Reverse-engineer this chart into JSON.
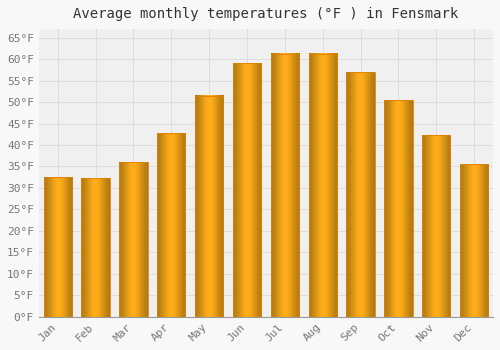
{
  "title": "Average monthly temperatures (°F ) in Fensmark",
  "months": [
    "Jan",
    "Feb",
    "Mar",
    "Apr",
    "May",
    "Jun",
    "Jul",
    "Aug",
    "Sep",
    "Oct",
    "Nov",
    "Dec"
  ],
  "values": [
    32.5,
    32.3,
    36.0,
    42.8,
    51.5,
    59.0,
    61.3,
    61.3,
    57.0,
    50.5,
    42.3,
    35.5
  ],
  "bar_color_main": "#FFA800",
  "bar_color_light": "#FFD060",
  "bar_color_dark": "#E08000",
  "background_color": "#F8F8F8",
  "plot_bg_color": "#F0F0F0",
  "grid_color": "#DDDDDD",
  "ylim": [
    0,
    67
  ],
  "yticks": [
    0,
    5,
    10,
    15,
    20,
    25,
    30,
    35,
    40,
    45,
    50,
    55,
    60,
    65
  ],
  "ytick_labels": [
    "0°F",
    "5°F",
    "10°F",
    "15°F",
    "20°F",
    "25°F",
    "30°F",
    "35°F",
    "40°F",
    "45°F",
    "50°F",
    "55°F",
    "60°F",
    "65°F"
  ],
  "title_fontsize": 10,
  "tick_fontsize": 8,
  "tick_color": "#777777",
  "font_family": "monospace"
}
